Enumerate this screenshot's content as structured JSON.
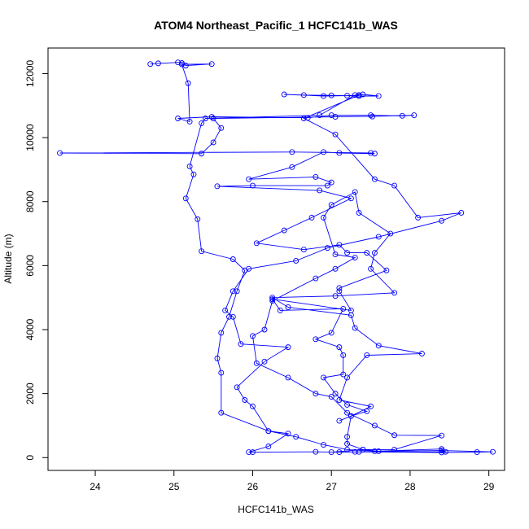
{
  "chart_data": {
    "type": "line",
    "title": "ATOM4 Northeast_Pacific_1 HCFC141b_WAS",
    "xlabel": "HCFC141b_WAS",
    "ylabel": "Altitude (m)",
    "xlim": [
      23.4,
      29.2
    ],
    "ylim": [
      -400,
      12800
    ],
    "xticks": [
      24,
      25,
      26,
      27,
      28,
      29
    ],
    "yticks": [
      0,
      2000,
      4000,
      6000,
      8000,
      10000,
      12000
    ],
    "grid": false,
    "legend": "none",
    "markers": "open-circle",
    "series_color": "#0000ff",
    "series": [
      {
        "points": [
          [
            24.7,
            12300
          ],
          [
            24.8,
            12320
          ],
          [
            25.05,
            12350
          ],
          [
            25.1,
            12330
          ],
          [
            25.15,
            12250
          ],
          [
            25.48,
            12300
          ],
          [
            25.1,
            12290
          ],
          [
            25.18,
            11700
          ],
          [
            25.2,
            10500
          ],
          [
            25.05,
            10600
          ],
          [
            25.48,
            10650
          ],
          [
            26.7,
            10620
          ],
          [
            27.0,
            10700
          ],
          [
            27.5,
            10700
          ],
          [
            27.9,
            10680
          ],
          [
            28.05,
            10700
          ],
          [
            27.52,
            10660
          ],
          [
            27.05,
            10650
          ],
          [
            25.5,
            10600
          ],
          [
            25.6,
            10300
          ],
          [
            25.5,
            9850
          ],
          [
            25.35,
            9500
          ],
          [
            23.55,
            9520
          ],
          [
            26.5,
            9550
          ],
          [
            27.5,
            9520
          ],
          [
            27.55,
            9500
          ],
          [
            27.1,
            9520
          ],
          [
            26.9,
            9550
          ],
          [
            26.5,
            9080
          ],
          [
            25.95,
            8700
          ],
          [
            26.8,
            8770
          ],
          [
            27.0,
            8600
          ],
          [
            26.95,
            8500
          ],
          [
            26.0,
            8500
          ],
          [
            25.55,
            8480
          ],
          [
            26.85,
            8350
          ],
          [
            27.25,
            8100
          ],
          [
            26.75,
            7500
          ],
          [
            26.4,
            7100
          ],
          [
            26.05,
            6700
          ],
          [
            26.65,
            6500
          ],
          [
            27.1,
            6650
          ],
          [
            27.2,
            6400
          ],
          [
            27.45,
            6400
          ],
          [
            27.7,
            5850
          ],
          [
            27.1,
            5300
          ],
          [
            27.1,
            5200
          ],
          [
            27.25,
            4600
          ],
          [
            26.25,
            4950
          ],
          [
            26.35,
            4600
          ],
          [
            27.15,
            4650
          ],
          [
            27.0,
            3900
          ],
          [
            26.8,
            3700
          ],
          [
            27.1,
            3450
          ],
          [
            27.15,
            3200
          ],
          [
            27.15,
            2600
          ],
          [
            26.9,
            2500
          ],
          [
            27.05,
            2000
          ],
          [
            27.2,
            1650
          ],
          [
            27.45,
            1450
          ],
          [
            27.25,
            1300
          ],
          [
            27.2,
            650
          ],
          [
            27.2,
            430
          ],
          [
            27.4,
            250
          ],
          [
            27.6,
            200
          ],
          [
            28.4,
            220
          ],
          [
            29.05,
            180
          ],
          [
            28.85,
            170
          ],
          [
            28.4,
            160
          ],
          [
            27.35,
            180
          ],
          [
            27.1,
            170
          ],
          [
            26.8,
            180
          ],
          [
            26.0,
            170
          ],
          [
            25.95,
            170
          ],
          [
            26.2,
            350
          ],
          [
            26.45,
            750
          ],
          [
            26.2,
            830
          ],
          [
            25.6,
            1400
          ],
          [
            25.6,
            2650
          ],
          [
            25.55,
            3100
          ],
          [
            25.6,
            3900
          ],
          [
            25.7,
            4400
          ],
          [
            25.8,
            5200
          ],
          [
            25.9,
            5850
          ],
          [
            25.75,
            6200
          ],
          [
            25.35,
            6450
          ],
          [
            25.3,
            7450
          ],
          [
            25.15,
            8100
          ],
          [
            25.25,
            8850
          ],
          [
            25.2,
            9100
          ],
          [
            25.35,
            10450
          ],
          [
            25.4,
            10600
          ],
          [
            26.85,
            10700
          ],
          [
            27.3,
            11330
          ],
          [
            27.4,
            11350
          ],
          [
            27.6,
            11300
          ],
          [
            27.35,
            11300
          ],
          [
            27.0,
            11320
          ],
          [
            26.65,
            11330
          ],
          [
            26.4,
            11350
          ],
          [
            26.9,
            11300
          ],
          [
            27.2,
            11310
          ],
          [
            27.35,
            11330
          ],
          [
            26.65,
            10600
          ],
          [
            27.05,
            10100
          ],
          [
            27.55,
            8700
          ],
          [
            27.8,
            8500
          ],
          [
            28.1,
            7500
          ],
          [
            28.65,
            7650
          ],
          [
            28.4,
            7400
          ],
          [
            27.6,
            6900
          ],
          [
            26.95,
            6550
          ],
          [
            26.55,
            6150
          ],
          [
            25.95,
            5900
          ],
          [
            25.75,
            5200
          ],
          [
            25.65,
            4600
          ],
          [
            25.75,
            4400
          ],
          [
            25.85,
            3550
          ],
          [
            26.45,
            3450
          ],
          [
            26.15,
            3000
          ],
          [
            25.8,
            2200
          ],
          [
            25.9,
            1800
          ],
          [
            26.0,
            1600
          ],
          [
            26.2,
            830
          ],
          [
            26.55,
            650
          ],
          [
            26.9,
            400
          ],
          [
            27.2,
            250
          ],
          [
            27.55,
            200
          ],
          [
            28.4,
            270
          ],
          [
            28.45,
            180
          ],
          [
            27.3,
            180
          ],
          [
            27.0,
            170
          ],
          [
            27.4,
            250
          ],
          [
            27.8,
            250
          ],
          [
            28.4,
            690
          ],
          [
            27.8,
            700
          ],
          [
            27.55,
            1000
          ],
          [
            27.2,
            1400
          ],
          [
            27.0,
            1900
          ],
          [
            26.8,
            2000
          ],
          [
            26.45,
            2500
          ],
          [
            26.05,
            2950
          ],
          [
            26.0,
            3800
          ],
          [
            26.15,
            4000
          ],
          [
            26.25,
            4900
          ],
          [
            26.8,
            5600
          ],
          [
            27.05,
            5900
          ],
          [
            27.3,
            6250
          ],
          [
            27.05,
            6350
          ],
          [
            26.9,
            7500
          ],
          [
            27.0,
            7900
          ],
          [
            27.3,
            8300
          ],
          [
            27.35,
            7650
          ],
          [
            27.75,
            7000
          ],
          [
            27.55,
            6400
          ],
          [
            27.5,
            5900
          ],
          [
            27.8,
            5150
          ],
          [
            27.05,
            5050
          ],
          [
            26.25,
            5000
          ],
          [
            26.45,
            4700
          ],
          [
            27.25,
            4450
          ],
          [
            27.3,
            4050
          ],
          [
            27.6,
            3500
          ],
          [
            28.15,
            3250
          ],
          [
            27.45,
            3200
          ],
          [
            27.2,
            2500
          ],
          [
            27.1,
            1800
          ],
          [
            27.5,
            1600
          ],
          [
            27.25,
            1300
          ],
          [
            27.1,
            1150
          ]
        ]
      }
    ]
  }
}
